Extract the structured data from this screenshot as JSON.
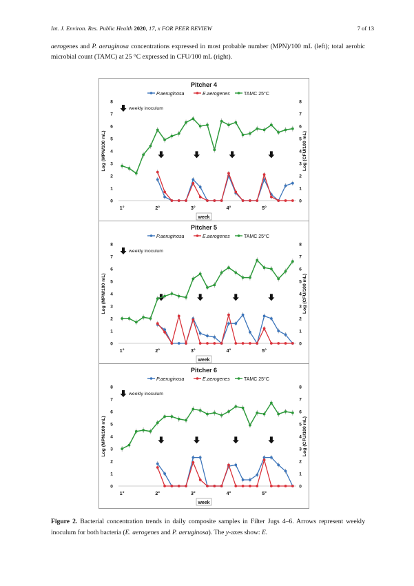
{
  "header": {
    "journal": "Int. J. Environ. Res. Public Health",
    "year": "2020",
    "volume_info": ", 17, x FOR PEER REVIEW",
    "page": "7 of 13"
  },
  "intro_text": {
    "part1_italic": "aero",
    "part2": "genes and ",
    "part3_italic": "P. aeruginosa",
    "part4": " concentrations expressed in most probable number (MPN)/100 mL (left); total aerobic microbial count (TAMC) at 25 °C expressed in CFU/100 mL (right)."
  },
  "caption": {
    "label": "Figure 2.",
    "text1": " Bacterial concentration trends in daily composite samples in Filter Jugs 4–6. Arrows represent weekly inoculum for both bacteria (",
    "italic1": "E. aerogenes",
    "text2": " and ",
    "italic2": "P. aeruginosa",
    "text3": "). The ",
    "italic3": "y",
    "text4": "-axes show: ",
    "italic4": "E."
  },
  "colors": {
    "pa": "#3c75bb",
    "ea": "#d9323a",
    "tamc": "#2e9a3b",
    "frame": "#9a9a9a"
  },
  "chart_data": [
    {
      "type": "line",
      "title": "Pitcher 4",
      "legend": [
        "P.aeruginosa",
        "E.aerogenes",
        "TAMC 25°C"
      ],
      "inoculum_label": "weekly inoculum",
      "ylabel_left": "Log (MPN/100 mL)",
      "ylabel_right": "Log (CFU/100 mL)",
      "xlabel": "week",
      "week_labels": [
        "1°",
        "2°",
        "3°",
        "4°",
        "5°"
      ],
      "week_positions": [
        1,
        6,
        11,
        16,
        21
      ],
      "ylim": [
        0,
        8
      ],
      "yticks": [
        0,
        1,
        2,
        3,
        4,
        5,
        6,
        7,
        8
      ],
      "xlim": [
        0.5,
        25.5
      ],
      "arrows_x": [
        6.5,
        11.5,
        16.5,
        22
      ],
      "series": [
        {
          "name": "TAMC 25°C",
          "key": "tamc",
          "x": [
            1,
            2,
            3,
            4,
            5,
            6,
            7,
            8,
            9,
            10,
            11,
            12,
            13,
            14,
            15,
            16,
            17,
            18,
            19,
            20,
            21,
            22,
            23,
            24,
            25
          ],
          "values": [
            2.8,
            2.6,
            2.2,
            3.7,
            4.4,
            5.7,
            4.9,
            5.2,
            5.4,
            6.3,
            6.6,
            6.0,
            6.1,
            4.1,
            6.4,
            6.1,
            6.3,
            5.3,
            5.4,
            5.8,
            5.7,
            6.1,
            5.5,
            5.7,
            5.8
          ]
        },
        {
          "name": "P.aeruginosa",
          "key": "pa",
          "x": [
            6,
            7,
            8,
            9,
            10,
            11,
            12,
            13,
            14,
            15,
            16,
            17,
            18,
            19,
            20,
            21,
            22,
            23,
            24,
            25
          ],
          "values": [
            1.7,
            0.3,
            0,
            0,
            0,
            1.7,
            1.1,
            0,
            0,
            0,
            2.0,
            0.6,
            0,
            0,
            0,
            1.7,
            0.5,
            0,
            1.2,
            1.4
          ]
        },
        {
          "name": "E.aerogenes",
          "key": "ea",
          "x": [
            6,
            7,
            8,
            9,
            10,
            11,
            12,
            13,
            14,
            15,
            16,
            17,
            18,
            19,
            20,
            21,
            22,
            23,
            24,
            25
          ],
          "values": [
            2.3,
            0.7,
            0,
            0,
            0,
            1.4,
            0.3,
            0,
            0,
            0,
            2.2,
            0.7,
            0,
            0,
            0,
            2.1,
            0.3,
            0,
            0,
            0
          ]
        }
      ]
    },
    {
      "type": "line",
      "title": "Pitcher 5",
      "legend": [
        "P.aeruginosa",
        "E.aerogenes",
        "TAMC 25°C"
      ],
      "inoculum_label": "weekly inoculum",
      "ylabel_left": "Log (MPN/100 mL)",
      "ylabel_right": "Log (CFU/100 mL)",
      "xlabel": "week",
      "week_labels": [
        "1°",
        "2°",
        "3°",
        "4°",
        "5°"
      ],
      "week_positions": [
        1,
        6,
        11,
        16,
        21
      ],
      "ylim": [
        0,
        8
      ],
      "yticks": [
        0,
        1,
        2,
        3,
        4,
        5,
        6,
        7,
        8
      ],
      "xlim": [
        0.5,
        25.5
      ],
      "arrows_x": [
        6.5,
        12,
        17,
        22
      ],
      "series": [
        {
          "name": "TAMC 25°C",
          "key": "tamc",
          "x": [
            1,
            2,
            3,
            4,
            5,
            6,
            7,
            8,
            9,
            10,
            11,
            12,
            13,
            14,
            15,
            16,
            17,
            18,
            19,
            20,
            21,
            22,
            23,
            24,
            25
          ],
          "values": [
            2.0,
            2.0,
            1.7,
            2.1,
            2.0,
            3.6,
            3.8,
            4.0,
            3.8,
            3.7,
            5.2,
            5.6,
            4.5,
            4.7,
            5.7,
            6.1,
            5.7,
            5.3,
            5.3,
            6.7,
            6.1,
            6.0,
            5.2,
            5.8,
            6.6
          ]
        },
        {
          "name": "P.aeruginosa",
          "key": "pa",
          "x": [
            6,
            7,
            8,
            9,
            10,
            11,
            12,
            13,
            14,
            15,
            16,
            17,
            18,
            19,
            20,
            21,
            22,
            23,
            24,
            25
          ],
          "values": [
            1.5,
            1.1,
            0,
            0,
            0,
            2.0,
            0.8,
            0.6,
            0.5,
            0,
            1.6,
            1.6,
            2.3,
            0.9,
            0,
            2.2,
            2.0,
            1.0,
            0.7,
            0
          ]
        },
        {
          "name": "E.aerogenes",
          "key": "ea",
          "x": [
            6,
            7,
            8,
            9,
            10,
            11,
            12,
            13,
            14,
            15,
            16,
            17,
            18,
            19,
            20,
            21,
            22,
            23,
            24,
            25
          ],
          "values": [
            1.6,
            0.9,
            0,
            2.2,
            0,
            1.9,
            0,
            0,
            0,
            0,
            2.3,
            0,
            0,
            0,
            0,
            1.2,
            0,
            0,
            0,
            0
          ]
        }
      ]
    },
    {
      "type": "line",
      "title": "Pitcher 6",
      "legend": [
        "P.aeruginosa",
        "E.aerogenes",
        "TAMC 25°C"
      ],
      "inoculum_label": "weekly inoculum",
      "ylabel_left": "Log (MPN/100 mL)",
      "ylabel_right": "Log (CFU/100 mL)",
      "xlabel": "week",
      "week_labels": [
        "1°",
        "2°",
        "3°",
        "4°",
        "5°"
      ],
      "week_positions": [
        1,
        6,
        11,
        16,
        21
      ],
      "ylim": [
        0,
        8
      ],
      "yticks": [
        0,
        1,
        2,
        3,
        4,
        5,
        6,
        7,
        8
      ],
      "xlim": [
        0.5,
        25.5
      ],
      "arrows_x": [
        6.5,
        11.5,
        17,
        22
      ],
      "series": [
        {
          "name": "TAMC 25°C",
          "key": "tamc",
          "x": [
            1,
            2,
            3,
            4,
            5,
            6,
            7,
            8,
            9,
            10,
            11,
            12,
            13,
            14,
            15,
            16,
            17,
            18,
            19,
            20,
            21,
            22,
            23,
            24,
            25
          ],
          "values": [
            3.0,
            3.3,
            4.4,
            4.5,
            4.4,
            5.1,
            5.6,
            5.6,
            5.4,
            5.3,
            6.2,
            6.1,
            5.8,
            5.9,
            5.7,
            6.0,
            6.4,
            6.3,
            4.9,
            5.9,
            5.8,
            6.7,
            5.8,
            6.0,
            5.9
          ]
        },
        {
          "name": "P.aeruginosa",
          "key": "pa",
          "x": [
            6,
            7,
            8,
            9,
            10,
            11,
            12,
            13,
            14,
            15,
            16,
            17,
            18,
            19,
            20,
            21,
            22,
            23,
            24,
            25
          ],
          "values": [
            1.8,
            1.0,
            0,
            0,
            0,
            2.3,
            2.3,
            0,
            0,
            0,
            1.6,
            1.7,
            0.5,
            0.5,
            0.9,
            2.3,
            2.3,
            1.7,
            1.2,
            0
          ]
        },
        {
          "name": "E.aerogenes",
          "key": "ea",
          "x": [
            6,
            7,
            8,
            9,
            10,
            11,
            12,
            13,
            14,
            15,
            16,
            17,
            18,
            19,
            20,
            21,
            22,
            23,
            24,
            25
          ],
          "values": [
            1.5,
            0,
            0,
            0,
            0,
            1.9,
            0.5,
            0,
            0,
            0,
            1.7,
            0,
            0,
            0,
            0,
            2.1,
            0,
            0,
            0,
            0
          ]
        }
      ]
    }
  ]
}
